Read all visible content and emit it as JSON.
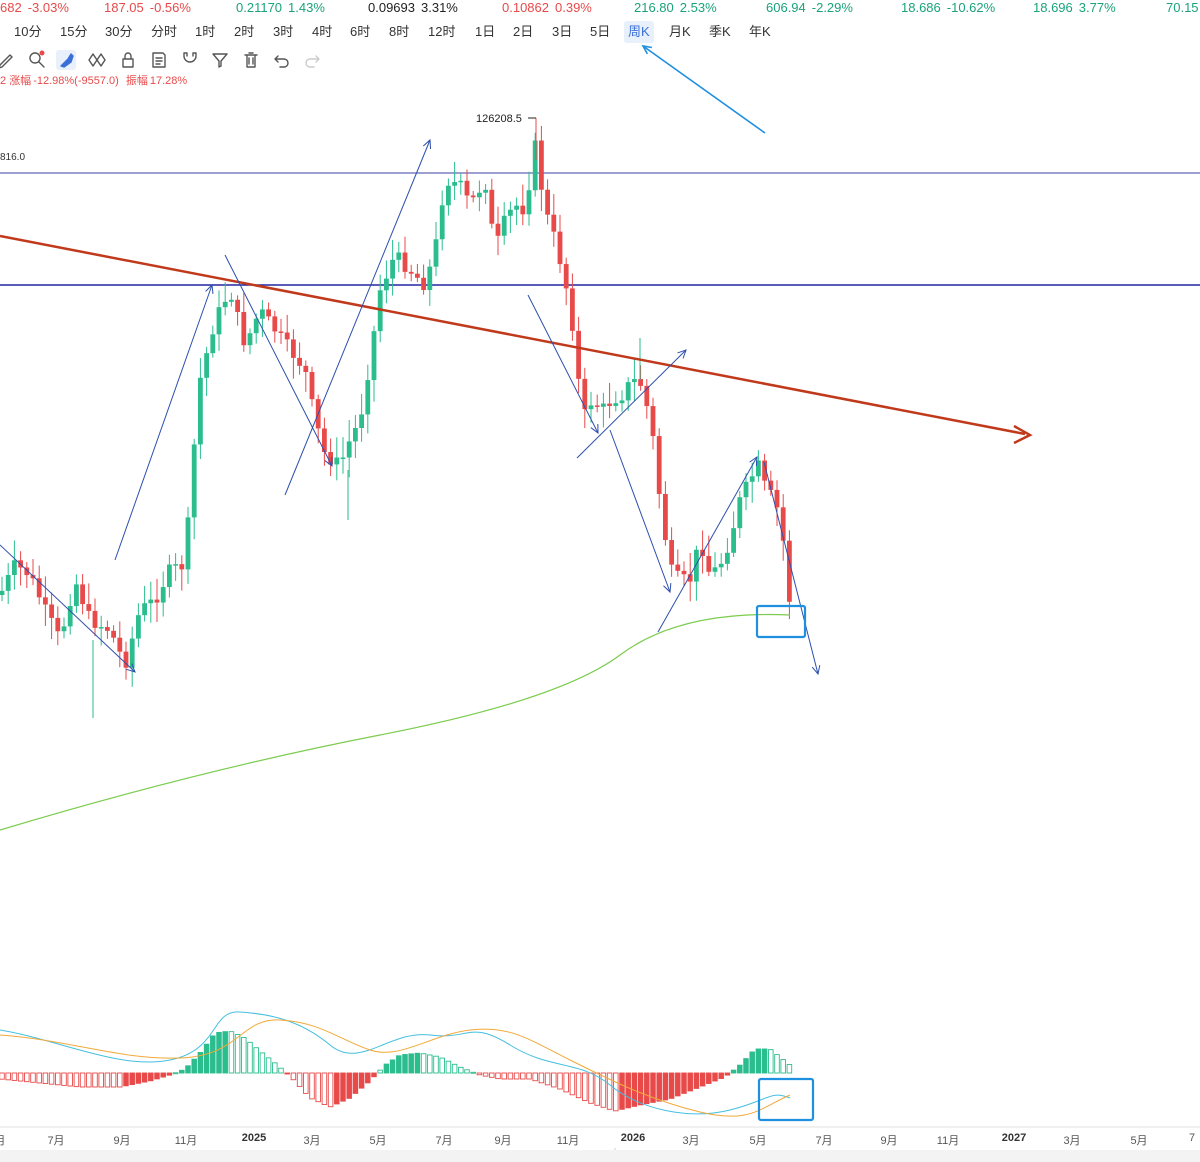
{
  "ticker": [
    {
      "value": "682",
      "change": "-3.03%",
      "dir": "down"
    },
    {
      "value": "187.05",
      "change": "-0.56%",
      "dir": "down"
    },
    {
      "value": "0.21170",
      "change": "1.43%",
      "dir": "up"
    },
    {
      "value": "0.09693",
      "change": "3.31%",
      "dir": "dark"
    },
    {
      "value": "0.10862",
      "change": "0.39%",
      "dir": "down"
    },
    {
      "value": "216.80",
      "change": "2.53%",
      "dir": "up"
    },
    {
      "value": "606.94",
      "change": "-2.29%",
      "dir": "up"
    },
    {
      "value": "18.686",
      "change": "-10.62%",
      "dir": "up"
    },
    {
      "value": "18.696",
      "change": "3.77%",
      "dir": "up"
    },
    {
      "value": "70.15",
      "change": "",
      "dir": "up"
    }
  ],
  "periods": [
    "10分",
    "15分",
    "30分",
    "分时",
    "1时",
    "2时",
    "3时",
    "4时",
    "6时",
    "8时",
    "12时",
    "1日",
    "2日",
    "3日",
    "5日",
    "周K",
    "月K",
    "季K",
    "年K"
  ],
  "active_period": "周K",
  "tools": [
    "pencil-icon",
    "zoom-icon",
    "brush-icon",
    "pattern-icon",
    "lock-icon",
    "note-icon",
    "magnet-icon",
    "filter-icon",
    "trash-icon",
    "undo-icon",
    "redo-icon"
  ],
  "info": {
    "prefix": "2",
    "change_label": "涨幅",
    "change_value": "-12.98%(-9557.0)",
    "amp_label": "振幅",
    "amp_value": "17.28%"
  },
  "chart_data": {
    "type": "candlestick",
    "peak_label": "126208.5",
    "level_label": "816.0",
    "x_ticks": [
      {
        "label": "月"
      },
      {
        "label": "7月"
      },
      {
        "label": "9月"
      },
      {
        "label": "11月"
      },
      {
        "label": "2025",
        "bold": true
      },
      {
        "label": "3月"
      },
      {
        "label": "5月"
      },
      {
        "label": "7月"
      },
      {
        "label": "9月"
      },
      {
        "label": "11月"
      },
      {
        "label": "2026",
        "bold": true
      },
      {
        "label": "3月"
      },
      {
        "label": "5月"
      },
      {
        "label": "7月"
      },
      {
        "label": "9月"
      },
      {
        "label": "11月"
      },
      {
        "label": "2027",
        "bold": true
      },
      {
        "label": "3月"
      },
      {
        "label": "5月"
      },
      {
        "label": "7"
      }
    ],
    "colors": {
      "up": "#2bbd8e",
      "down": "#e84a4a",
      "trend": "#c0391b",
      "level": "#3a3fa0",
      "ma": "#7ccc4f",
      "annot": "#2d4fae",
      "highlight": "#1f8fe0",
      "dif": "#45bfe0",
      "dea": "#f1a93a"
    }
  }
}
